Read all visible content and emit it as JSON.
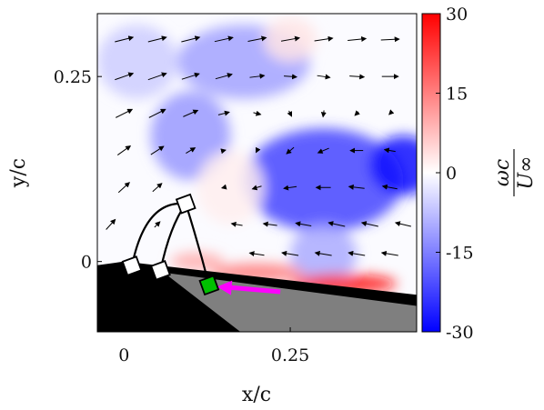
{
  "chart_data": {
    "type": "heatmap",
    "title": "",
    "xlabel": "x/c",
    "ylabel": "y/c",
    "xlim": [
      -0.04,
      0.44
    ],
    "ylim": [
      -0.095,
      0.335
    ],
    "xticks": [
      0,
      0.25
    ],
    "xtick_labels": [
      "0",
      "0.25"
    ],
    "yticks": [
      0,
      0.25
    ],
    "ytick_labels": [
      "0",
      "0.25"
    ],
    "colorbar": {
      "label_num": "ωc",
      "label_den": "U∞",
      "range": [
        -30,
        30
      ],
      "ticks": [
        30,
        15,
        0,
        -15,
        -30
      ],
      "tick_labels": [
        "30",
        "15",
        "0",
        "-15",
        "-30"
      ],
      "colormap": [
        "#0000ff",
        "#ffffff",
        "#ff0000"
      ]
    },
    "vorticity_regions": [
      {
        "x": 0.3,
        "y": 0.11,
        "sx": 0.12,
        "sy": 0.07,
        "value": -22
      },
      {
        "x": 0.42,
        "y": 0.13,
        "sx": 0.05,
        "sy": 0.04,
        "value": -28
      },
      {
        "x": 0.1,
        "y": 0.17,
        "sx": 0.06,
        "sy": 0.06,
        "value": -12
      },
      {
        "x": 0.18,
        "y": 0.27,
        "sx": 0.1,
        "sy": 0.05,
        "value": -11
      },
      {
        "x": 0.02,
        "y": 0.27,
        "sx": 0.06,
        "sy": 0.05,
        "value": -6
      },
      {
        "x": 0.3,
        "y": 0.01,
        "sx": 0.05,
        "sy": 0.04,
        "value": -10
      },
      {
        "x": 0.16,
        "y": 0.1,
        "sx": 0.05,
        "sy": 0.05,
        "value": 2
      },
      {
        "x": 0.33,
        "y": -0.03,
        "sx": 0.08,
        "sy": 0.013,
        "value": 28
      },
      {
        "x": 0.2,
        "y": -0.015,
        "sx": 0.07,
        "sy": 0.012,
        "value": 16
      },
      {
        "x": 0.11,
        "y": 0.0,
        "sx": 0.04,
        "sy": 0.012,
        "value": 10
      },
      {
        "x": 0.25,
        "y": 0.3,
        "sx": 0.04,
        "sy": 0.03,
        "value": 3
      }
    ],
    "velocity_vectors": [
      {
        "x": 0.0,
        "y": 0.3,
        "u": 1.0,
        "v": 0.25
      },
      {
        "x": 0.05,
        "y": 0.3,
        "u": 1.0,
        "v": 0.25
      },
      {
        "x": 0.1,
        "y": 0.3,
        "u": 1.0,
        "v": 0.25
      },
      {
        "x": 0.15,
        "y": 0.3,
        "u": 1.0,
        "v": 0.22
      },
      {
        "x": 0.2,
        "y": 0.3,
        "u": 1.0,
        "v": 0.2
      },
      {
        "x": 0.25,
        "y": 0.3,
        "u": 1.0,
        "v": 0.18
      },
      {
        "x": 0.3,
        "y": 0.3,
        "u": 1.0,
        "v": 0.15
      },
      {
        "x": 0.35,
        "y": 0.3,
        "u": 1.0,
        "v": 0.1
      },
      {
        "x": 0.4,
        "y": 0.3,
        "u": 1.0,
        "v": 0.05
      },
      {
        "x": 0.0,
        "y": 0.25,
        "u": 1.0,
        "v": 0.35
      },
      {
        "x": 0.05,
        "y": 0.25,
        "u": 1.0,
        "v": 0.35
      },
      {
        "x": 0.1,
        "y": 0.25,
        "u": 0.95,
        "v": 0.3
      },
      {
        "x": 0.15,
        "y": 0.25,
        "u": 0.9,
        "v": 0.25
      },
      {
        "x": 0.2,
        "y": 0.25,
        "u": 0.8,
        "v": 0.1
      },
      {
        "x": 0.25,
        "y": 0.25,
        "u": 0.7,
        "v": -0.05
      },
      {
        "x": 0.3,
        "y": 0.25,
        "u": 0.7,
        "v": -0.1
      },
      {
        "x": 0.35,
        "y": 0.25,
        "u": 0.8,
        "v": -0.05
      },
      {
        "x": 0.4,
        "y": 0.25,
        "u": 0.9,
        "v": 0.0
      },
      {
        "x": 0.0,
        "y": 0.2,
        "u": 0.9,
        "v": 0.45
      },
      {
        "x": 0.05,
        "y": 0.2,
        "u": 0.9,
        "v": 0.45
      },
      {
        "x": 0.1,
        "y": 0.2,
        "u": 0.8,
        "v": 0.35
      },
      {
        "x": 0.15,
        "y": 0.2,
        "u": 0.6,
        "v": 0.15
      },
      {
        "x": 0.2,
        "y": 0.2,
        "u": 0.4,
        "v": -0.1
      },
      {
        "x": 0.25,
        "y": 0.2,
        "u": 0.15,
        "v": -0.3
      },
      {
        "x": 0.3,
        "y": 0.2,
        "u": -0.05,
        "v": -0.35
      },
      {
        "x": 0.35,
        "y": 0.2,
        "u": -0.2,
        "v": -0.2
      },
      {
        "x": 0.4,
        "y": 0.2,
        "u": -0.1,
        "v": -0.1
      },
      {
        "x": 0.0,
        "y": 0.15,
        "u": 0.7,
        "v": 0.5
      },
      {
        "x": 0.05,
        "y": 0.15,
        "u": 0.7,
        "v": 0.45
      },
      {
        "x": 0.1,
        "y": 0.15,
        "u": 0.5,
        "v": 0.3
      },
      {
        "x": 0.15,
        "y": 0.15,
        "u": 0.2,
        "v": 0.05
      },
      {
        "x": 0.2,
        "y": 0.15,
        "u": -0.1,
        "v": -0.2
      },
      {
        "x": 0.25,
        "y": 0.15,
        "u": -0.4,
        "v": -0.35
      },
      {
        "x": 0.3,
        "y": 0.15,
        "u": -0.6,
        "v": -0.25
      },
      {
        "x": 0.35,
        "y": 0.15,
        "u": -0.7,
        "v": 0.0
      },
      {
        "x": 0.4,
        "y": 0.15,
        "u": -0.6,
        "v": 0.1
      },
      {
        "x": 0.0,
        "y": 0.1,
        "u": 0.6,
        "v": 0.55
      },
      {
        "x": 0.05,
        "y": 0.1,
        "u": 0.5,
        "v": 0.45
      },
      {
        "x": 0.15,
        "y": 0.1,
        "u": -0.2,
        "v": -0.05
      },
      {
        "x": 0.2,
        "y": 0.1,
        "u": -0.5,
        "v": -0.15
      },
      {
        "x": 0.25,
        "y": 0.1,
        "u": -0.7,
        "v": -0.1
      },
      {
        "x": 0.3,
        "y": 0.1,
        "u": -0.8,
        "v": 0.0
      },
      {
        "x": 0.35,
        "y": 0.1,
        "u": -0.85,
        "v": 0.1
      },
      {
        "x": 0.4,
        "y": 0.1,
        "u": -0.8,
        "v": 0.15
      },
      {
        "x": -0.02,
        "y": 0.05,
        "u": 0.5,
        "v": 0.55
      },
      {
        "x": 0.05,
        "y": 0.05,
        "u": 0.3,
        "v": 0.3
      },
      {
        "x": 0.17,
        "y": 0.05,
        "u": -0.6,
        "v": 0.1
      },
      {
        "x": 0.22,
        "y": 0.05,
        "u": -0.75,
        "v": 0.1
      },
      {
        "x": 0.27,
        "y": 0.05,
        "u": -0.85,
        "v": 0.15
      },
      {
        "x": 0.32,
        "y": 0.05,
        "u": -0.9,
        "v": 0.2
      },
      {
        "x": 0.37,
        "y": 0.05,
        "u": -0.9,
        "v": 0.2
      },
      {
        "x": 0.42,
        "y": 0.05,
        "u": -0.85,
        "v": 0.2
      },
      {
        "x": 0.2,
        "y": 0.01,
        "u": -0.8,
        "v": 0.12
      },
      {
        "x": 0.25,
        "y": 0.01,
        "u": -0.9,
        "v": 0.15
      },
      {
        "x": 0.3,
        "y": 0.01,
        "u": -0.9,
        "v": 0.15
      },
      {
        "x": 0.35,
        "y": 0.01,
        "u": -0.9,
        "v": 0.15
      },
      {
        "x": 0.4,
        "y": 0.01,
        "u": -0.9,
        "v": 0.15
      }
    ],
    "surface_black": [
      [
        -0.04,
        -0.095
      ],
      [
        -0.04,
        -0.005
      ],
      [
        0.0,
        0.0
      ],
      [
        0.44,
        -0.045
      ],
      [
        0.44,
        -0.06
      ],
      [
        0.175,
        -0.095
      ]
    ],
    "surface_gray": [
      [
        0.06,
        -0.015
      ],
      [
        0.44,
        -0.06
      ],
      [
        0.44,
        -0.095
      ],
      [
        0.175,
        -0.095
      ]
    ],
    "markers": [
      {
        "name": "white-square-a",
        "x": 0.012,
        "y": -0.006,
        "color": "#ffffff"
      },
      {
        "name": "white-square-b",
        "x": 0.055,
        "y": -0.012,
        "color": "#ffffff"
      },
      {
        "name": "white-square-c",
        "x": 0.093,
        "y": 0.078,
        "color": "#ffffff"
      },
      {
        "name": "green-square",
        "x": 0.128,
        "y": -0.032,
        "color": "#00c000"
      }
    ],
    "arrow": {
      "x_from": 0.235,
      "y_from": -0.041,
      "x_to": 0.14,
      "y_to": -0.034,
      "color": "#ff00ff"
    }
  }
}
